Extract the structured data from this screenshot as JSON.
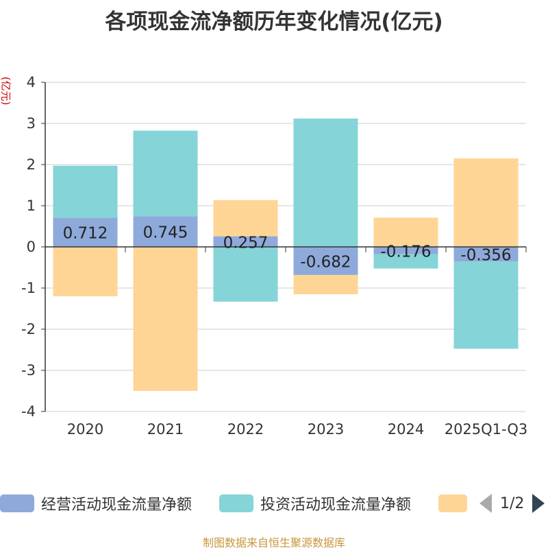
{
  "title": "各项现金流净额历年变化情况(亿元)",
  "unit_label": "(亿元)",
  "legend": {
    "items": [
      {
        "label": "经营活动现金流量净额",
        "color": "#8eaadb"
      },
      {
        "label": "投资活动现金流量净额",
        "color": "#85d4d7"
      },
      {
        "label": "",
        "color": "#ffd596"
      }
    ],
    "page": "1/2"
  },
  "source": "制图数据来自恒生聚源数据库",
  "chart_data": {
    "type": "bar",
    "stacked": true,
    "categories": [
      "2020",
      "2021",
      "2022",
      "2023",
      "2024",
      "2025Q1-Q3"
    ],
    "ylim": [
      -4,
      4
    ],
    "yticks": [
      4,
      3,
      2,
      1,
      0,
      -1,
      -2,
      -3,
      -4
    ],
    "grid": true,
    "legend_position": "bottom",
    "series": [
      {
        "name": "经营活动现金流量净额",
        "color": "#8eaadb",
        "values": [
          0.712,
          0.745,
          0.257,
          -0.682,
          -0.176,
          -0.356
        ],
        "labels": [
          "0.712",
          "0.745",
          "0.257",
          "-0.682",
          "-0.176",
          "-0.356"
        ]
      },
      {
        "name": "投资活动现金流量净额",
        "color": "#85d4d7",
        "values": [
          1.26,
          2.08,
          -1.33,
          3.12,
          -0.35,
          -2.12
        ]
      },
      {
        "color": "#ffd596",
        "values": [
          -1.2,
          -3.5,
          0.88,
          -0.47,
          0.71,
          2.15
        ]
      }
    ]
  }
}
